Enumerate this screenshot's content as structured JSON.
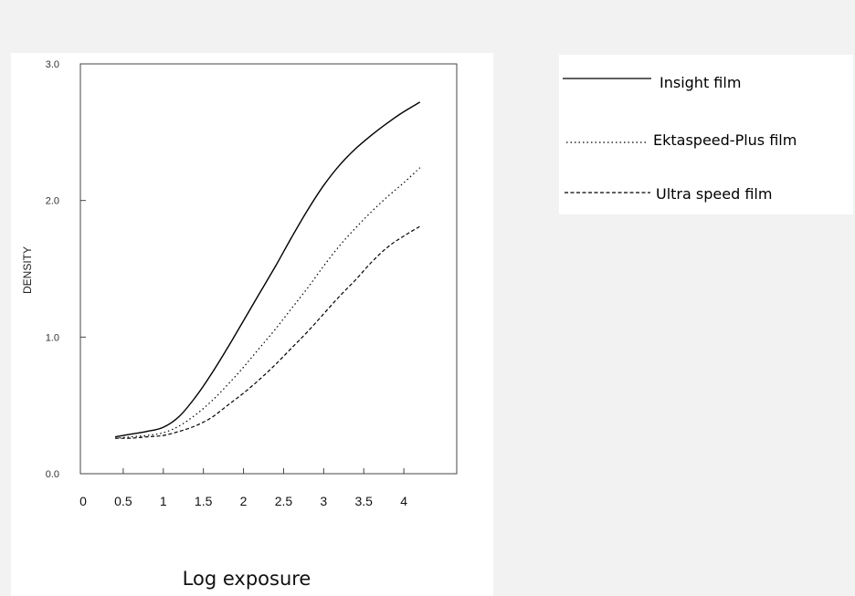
{
  "chart_data": {
    "type": "line",
    "xlabel": "Log exposure",
    "ylabel": "DENSITY",
    "xlim": [
      0,
      4.5
    ],
    "ylim": [
      0,
      3.0
    ],
    "y_ticks": [
      "0.0",
      "1.0",
      "2.0",
      "3.0"
    ],
    "x_ticks": [
      "0",
      "0.5",
      "1",
      "1.5",
      "2",
      "2.5",
      "3",
      "3.5",
      "4"
    ],
    "legend_position": "right",
    "grid": false,
    "series": [
      {
        "name": "Insight film",
        "style": "solid",
        "x": [
          0.4,
          0.6,
          0.8,
          1.0,
          1.2,
          1.4,
          1.6,
          1.8,
          2.0,
          2.2,
          2.4,
          2.6,
          2.8,
          3.0,
          3.2,
          3.4,
          3.6,
          3.8,
          4.0,
          4.2
        ],
        "y": [
          0.27,
          0.29,
          0.31,
          0.34,
          0.42,
          0.56,
          0.73,
          0.92,
          1.12,
          1.32,
          1.52,
          1.73,
          1.93,
          2.11,
          2.26,
          2.38,
          2.48,
          2.57,
          2.65,
          2.72
        ]
      },
      {
        "name": "Ektaspeed-Plus film",
        "style": "dotted",
        "x": [
          0.4,
          0.6,
          0.8,
          1.0,
          1.2,
          1.4,
          1.6,
          1.8,
          2.0,
          2.2,
          2.4,
          2.6,
          2.8,
          3.0,
          3.2,
          3.4,
          3.6,
          3.8,
          4.0,
          4.2
        ],
        "y": [
          0.26,
          0.27,
          0.28,
          0.3,
          0.35,
          0.43,
          0.53,
          0.65,
          0.78,
          0.92,
          1.06,
          1.21,
          1.36,
          1.52,
          1.67,
          1.8,
          1.92,
          2.03,
          2.13,
          2.24
        ]
      },
      {
        "name": "Ultra speed film",
        "style": "dashed",
        "x": [
          0.4,
          0.6,
          0.8,
          1.0,
          1.2,
          1.4,
          1.6,
          1.8,
          2.0,
          2.2,
          2.4,
          2.6,
          2.8,
          3.0,
          3.2,
          3.4,
          3.6,
          3.8,
          4.0,
          4.2
        ],
        "y": [
          0.26,
          0.26,
          0.27,
          0.28,
          0.31,
          0.35,
          0.41,
          0.5,
          0.59,
          0.69,
          0.8,
          0.92,
          1.04,
          1.17,
          1.3,
          1.42,
          1.55,
          1.66,
          1.74,
          1.81
        ]
      }
    ]
  },
  "colors": {
    "line": "#000000",
    "axis": "#444444",
    "panel": "#ffffff",
    "background": "#f2f2f2"
  }
}
